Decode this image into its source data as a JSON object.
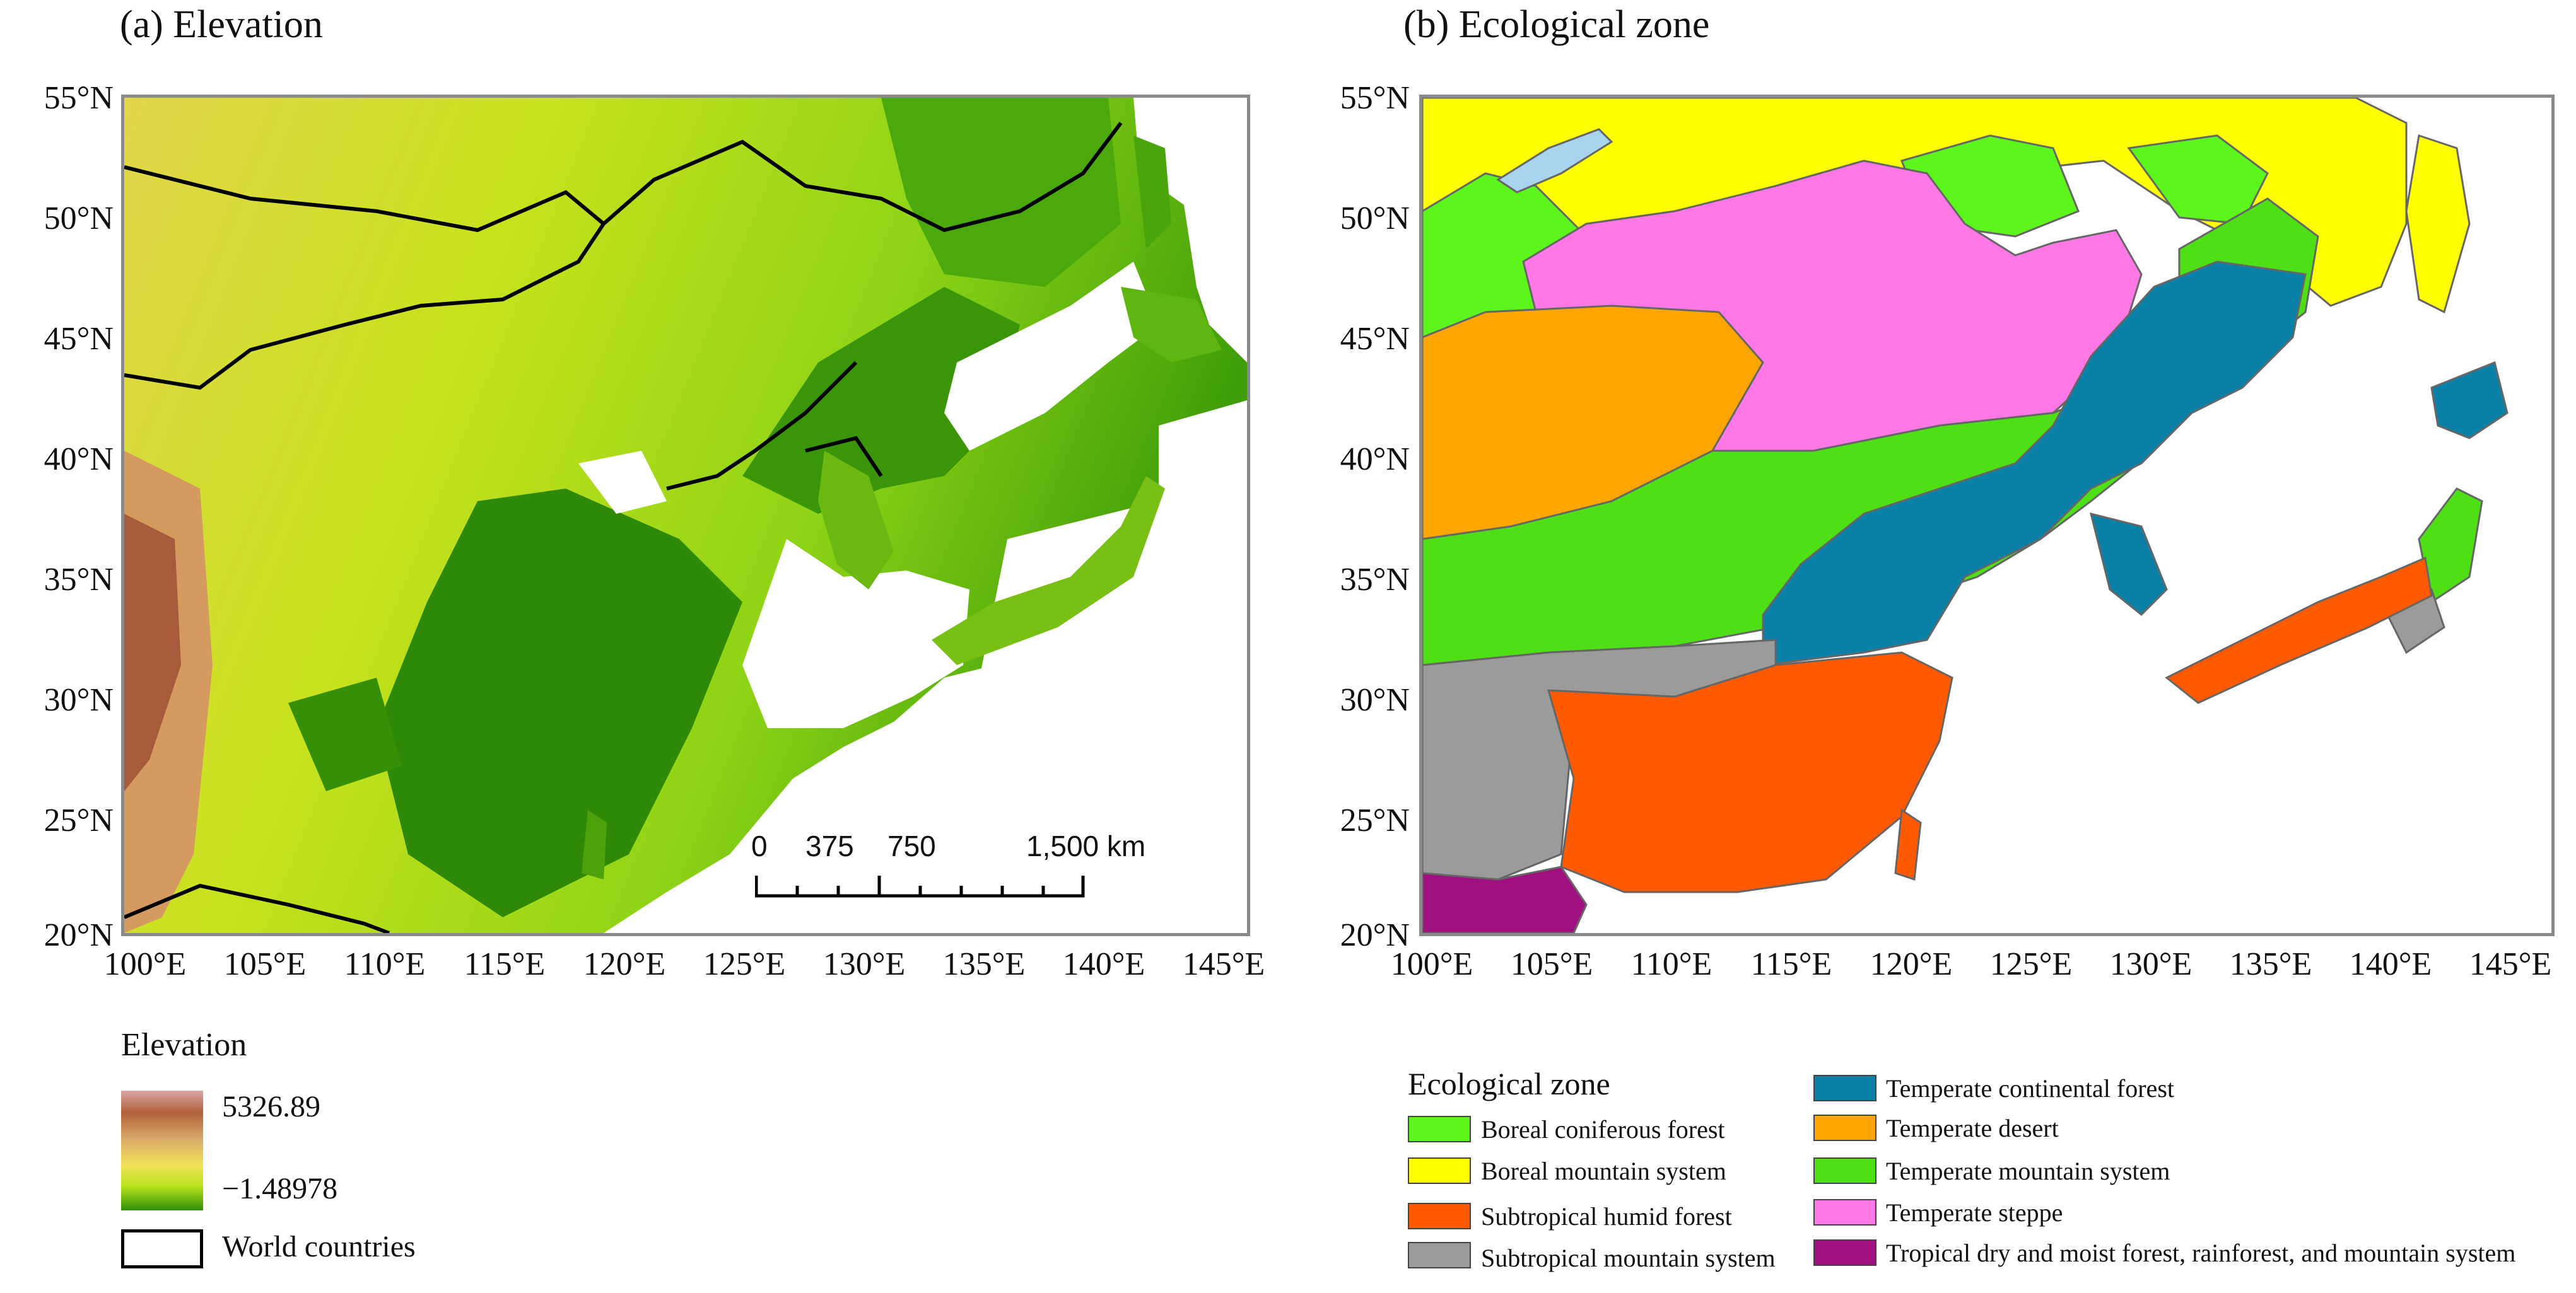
{
  "panel_a": {
    "title": "(a) Elevation",
    "y_ticks": [
      "55°N",
      "50°N",
      "45°N",
      "40°N",
      "35°N",
      "30°N",
      "25°N",
      "20°N"
    ],
    "x_ticks": [
      "100°E",
      "105°E",
      "110°E",
      "115°E",
      "120°E",
      "125°E",
      "130°E",
      "135°E",
      "140°E",
      "145°E"
    ],
    "scalebar": {
      "zero": "0",
      "t1": "375",
      "t2": "750",
      "t3": "1,500 km"
    }
  },
  "panel_b": {
    "title": "(b) Ecological zone",
    "y_ticks": [
      "55°N",
      "50°N",
      "45°N",
      "40°N",
      "35°N",
      "30°N",
      "25°N",
      "20°N"
    ],
    "x_ticks": [
      "100°E",
      "105°E",
      "110°E",
      "115°E",
      "120°E",
      "125°E",
      "130°E",
      "135°E",
      "140°E",
      "145°E"
    ]
  },
  "legend_a": {
    "title": "Elevation",
    "max_label": "5326.89",
    "min_label": "−1.48978",
    "countries_label": "World countries",
    "gradient_colors": [
      "#b0603a",
      "#d9a86a",
      "#f3e15a",
      "#b7e21c",
      "#2f8f06"
    ]
  },
  "legend_b": {
    "title": "Ecological zone",
    "items": [
      {
        "label": "Boreal coniferous forest",
        "color": "#5cf51c"
      },
      {
        "label": "Boreal mountain system",
        "color": "#ffff00"
      },
      {
        "label": "Subtropical humid forest",
        "color": "#ff5a00"
      },
      {
        "label": "Subtropical mountain system",
        "color": "#9b9b9b"
      },
      {
        "label": "Temperate continental forest",
        "color": "#0a80a6"
      },
      {
        "label": "Temperate desert",
        "color": "#ffa500"
      },
      {
        "label": "Temperate mountain system",
        "color": "#4ee014"
      },
      {
        "label": "Temperate steppe",
        "color": "#ff78e6"
      },
      {
        "label": "Tropical dry and moist forest, rainforest, and mountain system",
        "color": "#a0107e"
      }
    ]
  }
}
